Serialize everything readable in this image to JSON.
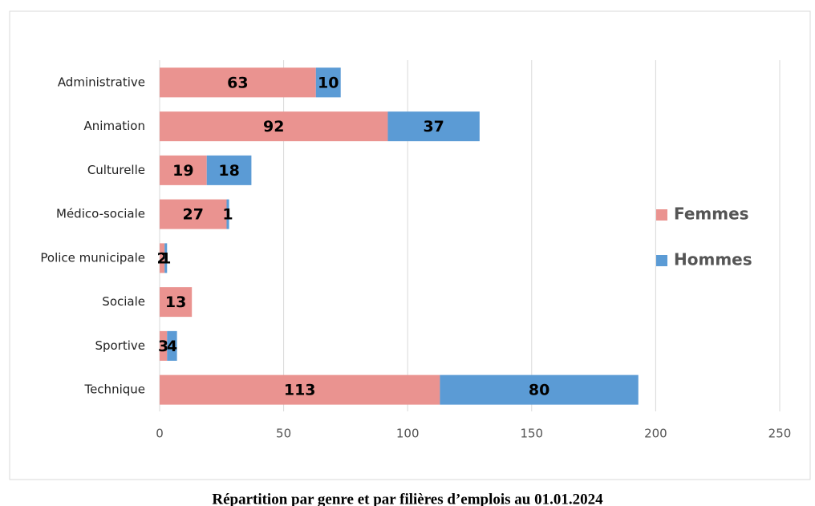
{
  "chart_data": {
    "type": "bar",
    "orientation": "horizontal",
    "stacked": true,
    "title": "Répartition par genre et par filières d’emplois au 01.01.2024",
    "categories": [
      "Administrative",
      "Animation",
      "Culturelle",
      "Médico-sociale",
      "Police municipale",
      "Sociale",
      "Sportive",
      "Technique"
    ],
    "series": [
      {
        "name": "Femmes",
        "color": "#ea9390",
        "values": [
          63,
          92,
          19,
          27,
          2,
          13,
          3,
          113
        ]
      },
      {
        "name": "Hommes",
        "color": "#5b9bd5",
        "values": [
          10,
          37,
          18,
          1,
          1,
          null,
          4,
          80
        ]
      }
    ],
    "xlim": [
      0,
      250
    ],
    "xticks": [
      0,
      50,
      100,
      150,
      200,
      250
    ],
    "grid": true,
    "legend": "right"
  }
}
